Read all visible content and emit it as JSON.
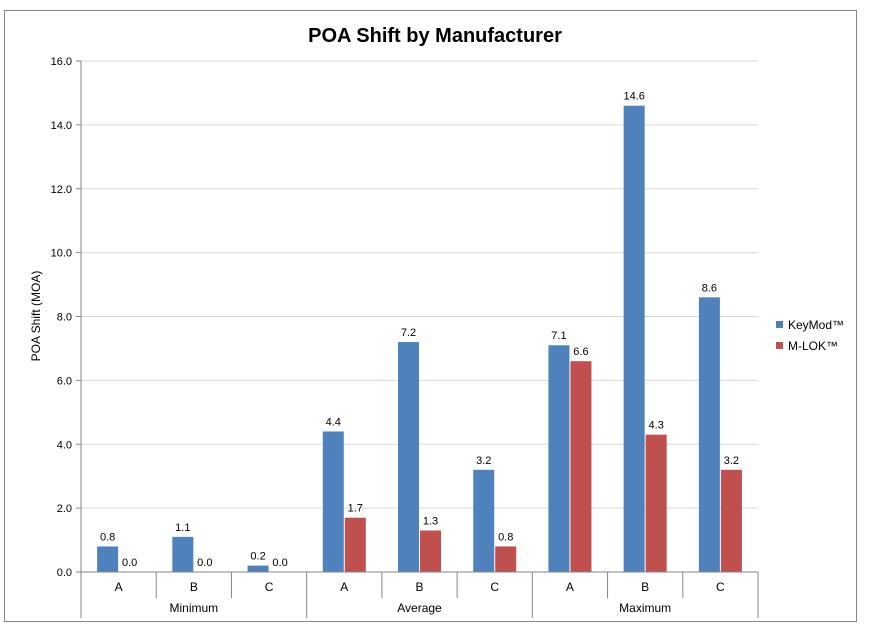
{
  "chart_data": {
    "type": "bar",
    "title": "POA Shift by Manufacturer",
    "xlabel": "",
    "ylabel": "POA Shift (MOA)",
    "ylim": [
      0,
      16
    ],
    "yticks": [
      "0.0",
      "2.0",
      "4.0",
      "6.0",
      "8.0",
      "10.0",
      "12.0",
      "14.0",
      "16.0"
    ],
    "grid": true,
    "legend_position": "right",
    "groups": [
      {
        "label": "Minimum",
        "categories": [
          "A",
          "B",
          "C"
        ]
      },
      {
        "label": "Average",
        "categories": [
          "A",
          "B",
          "C"
        ]
      },
      {
        "label": "Maximum",
        "categories": [
          "A",
          "B",
          "C"
        ]
      }
    ],
    "series": [
      {
        "name": "KeyMod™",
        "color": "#4F81BD",
        "values": [
          0.8,
          1.1,
          0.2,
          4.4,
          7.2,
          3.2,
          7.1,
          14.6,
          8.6
        ],
        "labels": [
          "0.8",
          "1.1",
          "0.2",
          "4.4",
          "7.2",
          "3.2",
          "7.1",
          "14.6",
          "8.6"
        ]
      },
      {
        "name": "M-LOK™",
        "color": "#C0504D",
        "values": [
          0.0,
          0.0,
          0.0,
          1.7,
          1.3,
          0.8,
          6.6,
          4.3,
          3.2
        ],
        "labels": [
          "0.0",
          "0.0",
          "0.0",
          "1.7",
          "1.3",
          "0.8",
          "6.6",
          "4.3",
          "3.2"
        ]
      }
    ]
  }
}
